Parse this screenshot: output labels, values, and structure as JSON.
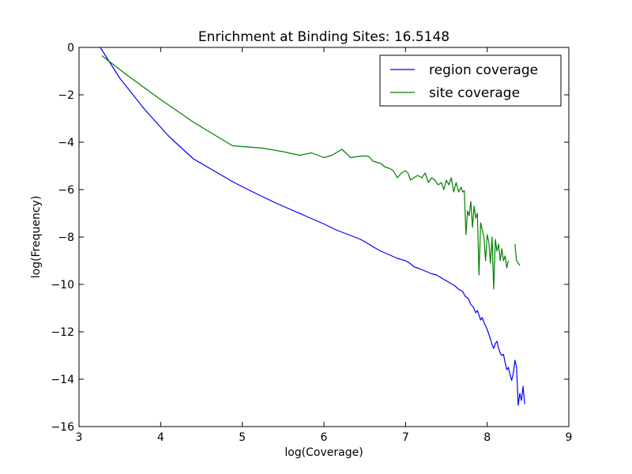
{
  "chart_data": {
    "type": "line",
    "title": "Enrichment at Binding Sites: 16.5148",
    "xlabel": "log(Coverage)",
    "ylabel": "log(Frequency)",
    "xlim": [
      3,
      9
    ],
    "ylim": [
      -16,
      0
    ],
    "xticks": [
      3,
      4,
      5,
      6,
      7,
      8,
      9
    ],
    "yticks": [
      0,
      -2,
      -4,
      -6,
      -8,
      -10,
      -12,
      -14,
      -16
    ],
    "xtick_labels": [
      "3",
      "4",
      "5",
      "6",
      "7",
      "8",
      "9"
    ],
    "ytick_labels": [
      "0",
      "−2",
      "−4",
      "−6",
      "−8",
      "−10",
      "−12",
      "−14",
      "−16"
    ],
    "legend_position": "top-right",
    "grid": false,
    "series": [
      {
        "name": "region coverage",
        "color": "#0000ff",
        "x": [
          3.26,
          3.5,
          3.8,
          4.1,
          4.4,
          4.7,
          4.9,
          5.1,
          5.25,
          5.4,
          5.6,
          5.8,
          6.0,
          6.15,
          6.3,
          6.45,
          6.55,
          6.62,
          6.7,
          6.8,
          6.9,
          7.0,
          7.05,
          7.1,
          7.18,
          7.25,
          7.32,
          7.38,
          7.45,
          7.5,
          7.55,
          7.6,
          7.65,
          7.7,
          7.73,
          7.77,
          7.8,
          7.83,
          7.86,
          7.88,
          7.9,
          7.92,
          7.94,
          7.96,
          7.98,
          8.0,
          8.02,
          8.04,
          8.06,
          8.08,
          8.1,
          8.12,
          8.14,
          8.16,
          8.18,
          8.2,
          8.22,
          8.24,
          8.26,
          8.28,
          8.3,
          8.32,
          8.34,
          8.36,
          8.38,
          8.4,
          8.42,
          8.44,
          8.46
        ],
        "y": [
          0.0,
          -1.3,
          -2.6,
          -3.75,
          -4.7,
          -5.3,
          -5.7,
          -6.05,
          -6.3,
          -6.55,
          -6.85,
          -7.15,
          -7.45,
          -7.7,
          -7.9,
          -8.1,
          -8.3,
          -8.45,
          -8.6,
          -8.75,
          -8.9,
          -9.0,
          -9.1,
          -9.25,
          -9.35,
          -9.45,
          -9.55,
          -9.6,
          -9.75,
          -9.85,
          -9.95,
          -10.05,
          -10.2,
          -10.3,
          -10.5,
          -10.6,
          -10.85,
          -10.95,
          -11.2,
          -11.1,
          -11.3,
          -11.5,
          -11.4,
          -11.6,
          -11.75,
          -11.9,
          -12.1,
          -12.3,
          -12.55,
          -12.7,
          -12.5,
          -12.4,
          -12.7,
          -12.9,
          -13.0,
          -12.95,
          -13.3,
          -13.6,
          -13.5,
          -13.8,
          -14.05,
          -13.75,
          -13.2,
          -13.5,
          -15.1,
          -14.6,
          -14.9,
          -14.3,
          -15.05
        ]
      },
      {
        "name": "site coverage",
        "color": "#008000",
        "x": [
          3.28,
          3.6,
          4.0,
          4.4,
          4.88,
          5.25,
          5.5,
          5.7,
          5.85,
          6.0,
          6.1,
          6.22,
          6.33,
          6.42,
          6.5,
          6.55,
          6.6,
          6.65,
          6.7,
          6.75,
          6.8,
          6.85,
          6.9,
          6.95,
          7.0,
          7.03,
          7.06,
          7.1,
          7.15,
          7.2,
          7.24,
          7.28,
          7.32,
          7.36,
          7.4,
          7.44,
          7.47,
          7.5,
          7.53,
          7.56,
          7.59,
          7.62,
          7.65,
          7.68,
          7.7,
          7.72,
          7.74,
          7.76,
          7.78,
          7.8,
          7.82,
          7.84,
          7.86,
          7.88,
          7.9,
          7.92,
          7.94,
          7.96,
          7.98,
          8.0,
          8.02,
          8.04,
          8.06,
          8.08,
          8.1,
          8.12,
          8.14,
          8.16,
          8.18,
          8.2,
          8.22,
          8.24,
          8.26,
          null,
          8.34,
          8.36,
          8.4
        ],
        "y": [
          -0.35,
          -1.2,
          -2.2,
          -3.15,
          -4.15,
          -4.25,
          -4.4,
          -4.55,
          -4.45,
          -4.65,
          -4.55,
          -4.3,
          -4.65,
          -4.6,
          -4.58,
          -4.6,
          -4.8,
          -4.85,
          -4.9,
          -5.05,
          -5.1,
          -5.2,
          -5.5,
          -5.3,
          -5.2,
          -5.3,
          -5.6,
          -5.5,
          -5.4,
          -5.5,
          -5.3,
          -5.7,
          -5.5,
          -5.6,
          -5.8,
          -5.7,
          -6.0,
          -5.6,
          -5.8,
          -5.5,
          -6.1,
          -5.7,
          -6.1,
          -5.9,
          -6.1,
          -6.05,
          -7.9,
          -6.9,
          -7.1,
          -6.5,
          -7.6,
          -6.7,
          -7.2,
          -7.0,
          -9.6,
          -7.4,
          -7.7,
          -8.0,
          -9.0,
          -7.9,
          -8.2,
          -9.1,
          -8.0,
          -10.2,
          -8.1,
          -8.6,
          -8.3,
          -9.0,
          -8.5,
          -9.0,
          -8.8,
          -9.3,
          -9.0,
          null,
          -8.3,
          -9.0,
          -9.2
        ]
      }
    ]
  }
}
